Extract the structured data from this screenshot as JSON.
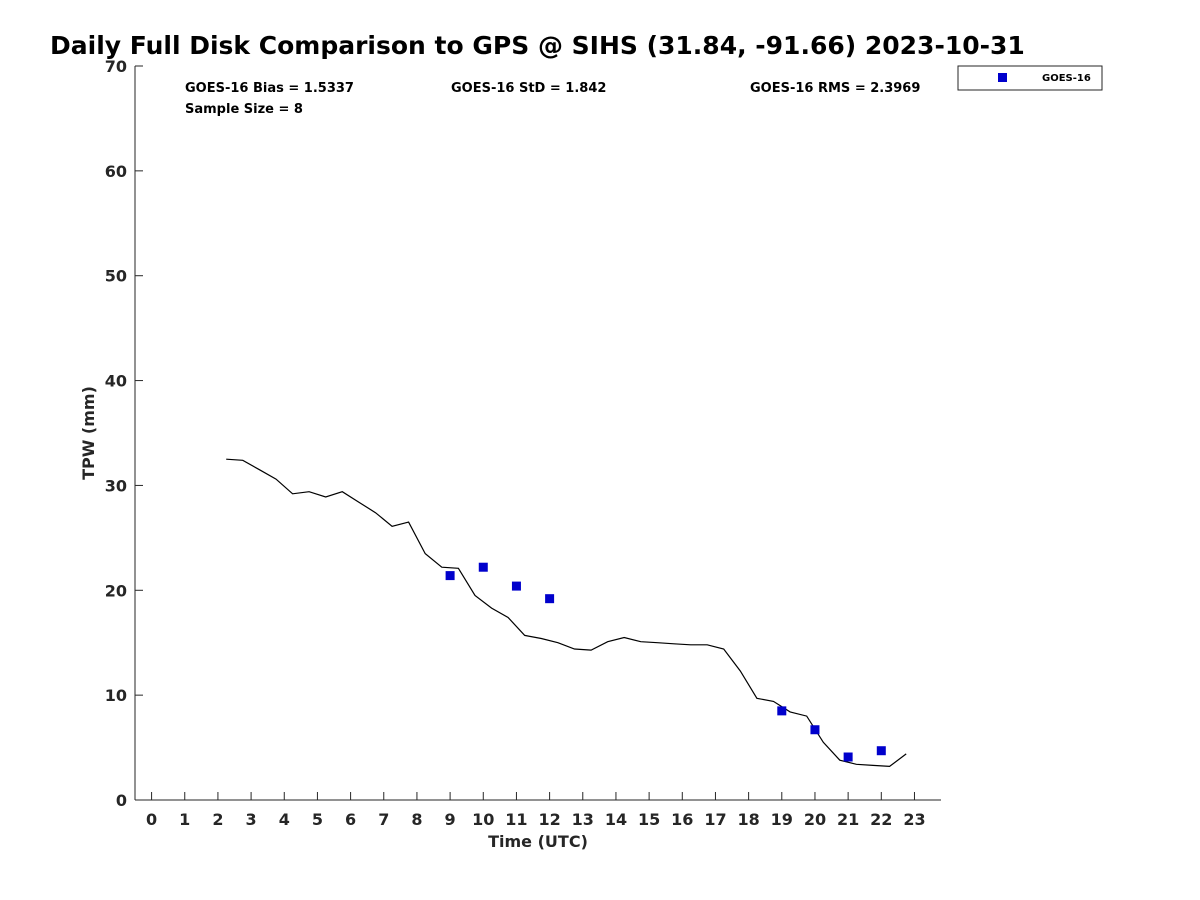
{
  "chart_data": {
    "type": "line",
    "title": "Daily Full Disk Comparison to GPS @ SIHS (31.84, -91.66) 2023-10-31",
    "xlabel": "Time (UTC)",
    "ylabel": "TPW (mm)",
    "xlim": [
      -0.5,
      23.8
    ],
    "ylim": [
      0,
      70
    ],
    "xticks": [
      0,
      1,
      2,
      3,
      4,
      5,
      6,
      7,
      8,
      9,
      10,
      11,
      12,
      13,
      14,
      15,
      16,
      17,
      18,
      19,
      20,
      21,
      22,
      23
    ],
    "yticks": [
      0,
      10,
      20,
      30,
      40,
      50,
      60,
      70
    ],
    "grid": false,
    "legend_position": "top-right-outside",
    "stats": {
      "bias": "GOES-16 Bias = 1.5337",
      "std": "GOES-16 StD = 1.842",
      "rms": "GOES-16 RMS = 2.3969",
      "sample": "Sample Size = 8"
    },
    "series": [
      {
        "type": "line",
        "color": "#000000",
        "x": [
          2.25,
          2.75,
          3.25,
          3.75,
          4.25,
          4.75,
          5.25,
          5.75,
          6.25,
          6.75,
          7.25,
          7.75,
          8.25,
          8.75,
          9.25,
          9.75,
          10.25,
          10.75,
          11.25,
          11.75,
          12.25,
          12.75,
          13.25,
          13.75,
          14.25,
          14.75,
          15.25,
          15.75,
          16.25,
          16.75,
          17.25,
          17.75,
          18.25,
          18.75,
          19.25,
          19.75,
          20.25,
          20.75,
          21.25,
          21.75,
          22.25,
          22.75
        ],
        "y": [
          32.5,
          32.4,
          31.5,
          30.6,
          29.2,
          29.4,
          28.9,
          29.4,
          28.4,
          27.4,
          26.1,
          26.5,
          23.5,
          22.2,
          22.1,
          19.5,
          18.3,
          17.4,
          15.7,
          15.4,
          15.0,
          14.4,
          14.3,
          15.1,
          15.5,
          15.1,
          15.0,
          14.9,
          14.8,
          14.8,
          14.4,
          12.3,
          9.7,
          9.4,
          8.4,
          8.0,
          5.5,
          3.8,
          3.4,
          3.3,
          3.2,
          4.4
        ]
      },
      {
        "name": "GOES-16",
        "type": "scatter",
        "color": "#0000cc",
        "x": [
          9,
          10,
          11,
          12,
          19,
          20,
          21,
          22
        ],
        "y": [
          21.4,
          22.2,
          20.4,
          19.2,
          8.5,
          6.7,
          4.1,
          4.7
        ]
      }
    ]
  }
}
